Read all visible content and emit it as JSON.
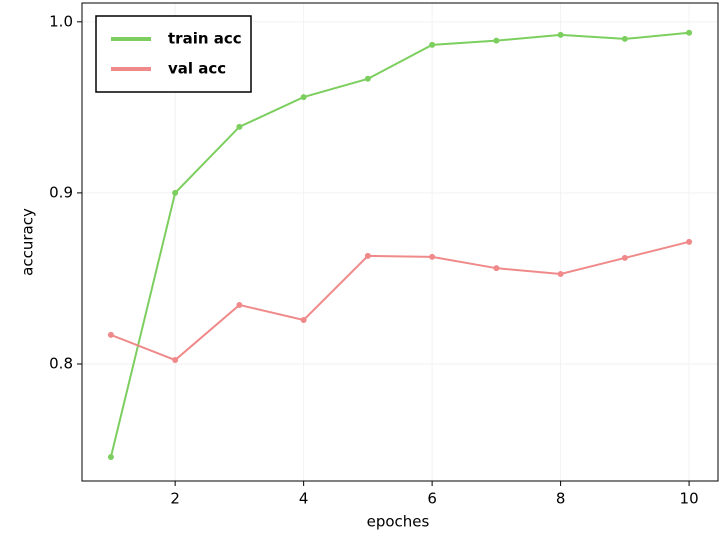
{
  "chart_data": {
    "type": "line",
    "x": [
      1,
      2,
      3,
      4,
      5,
      6,
      7,
      8,
      9,
      10
    ],
    "series": [
      {
        "name": "train acc",
        "color": "#7ccf5f",
        "values": [
          0.7456,
          0.9,
          0.9386,
          0.956,
          0.9667,
          0.9865,
          0.989,
          0.9924,
          0.99,
          0.9936
        ]
      },
      {
        "name": "val acc",
        "color": "#f08a8a",
        "values": [
          0.817,
          0.8023,
          0.8345,
          0.8257,
          0.8632,
          0.8626,
          0.856,
          0.8526,
          0.862,
          0.8714
        ]
      }
    ],
    "xlabel": "epoches",
    "ylabel": "accuracy",
    "xlim": [
      0.55,
      10.45
    ],
    "xticks": [
      2,
      4,
      6,
      8,
      10
    ],
    "ylim": [
      0.7316,
      1.011
    ],
    "yticks": [
      0.8,
      0.9,
      {
        "value": 1,
        "label": "1.0"
      }
    ],
    "grid": true,
    "legend": "upper left"
  }
}
